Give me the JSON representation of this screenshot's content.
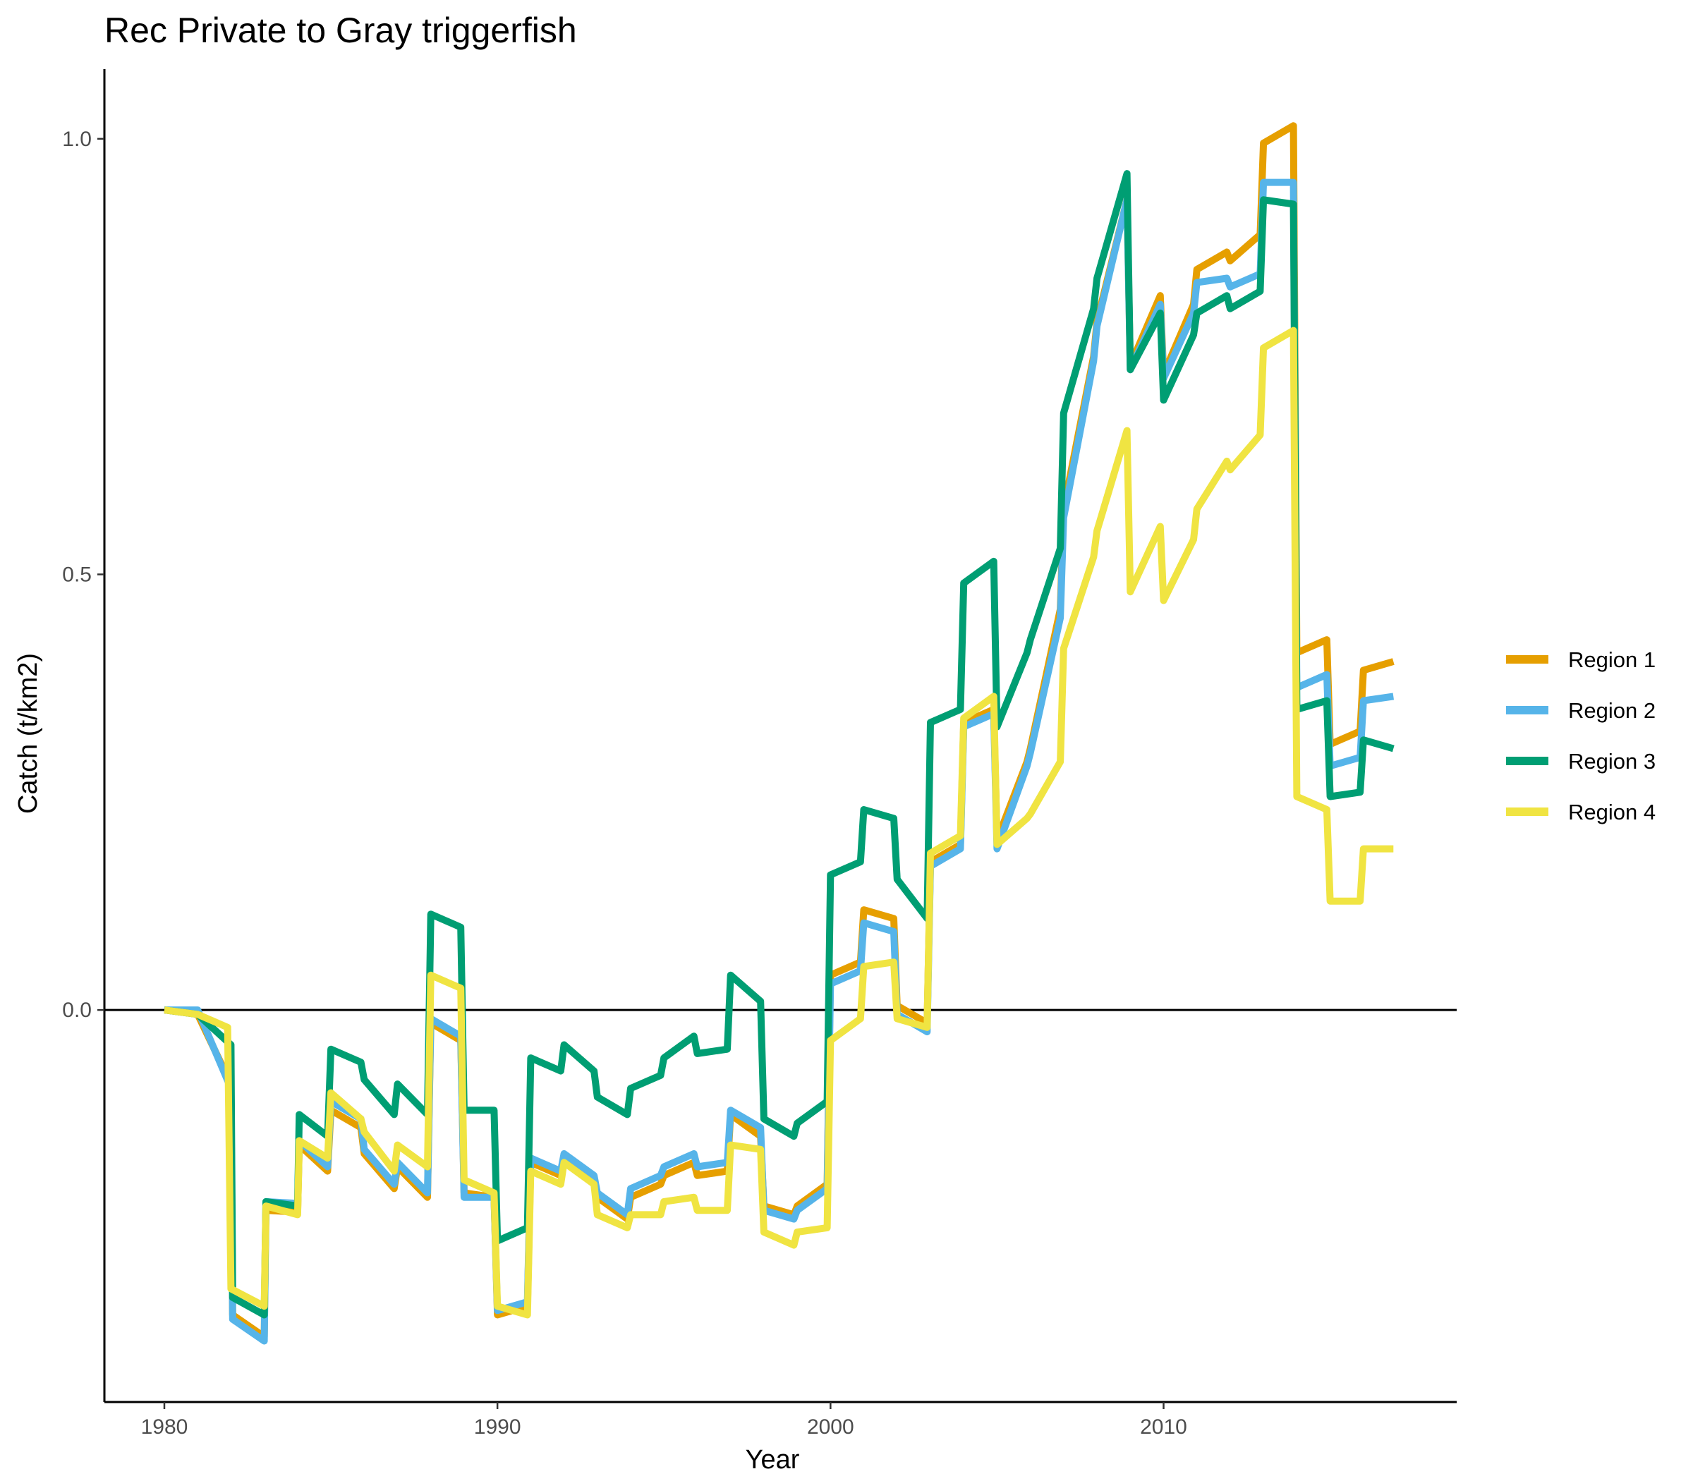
{
  "chart_data": {
    "type": "line",
    "title": "Rec Private to Gray triggerfish",
    "xlabel": "Year",
    "ylabel": "Catch (t/km2)",
    "xlim": [
      1978.2,
      2018.8
    ],
    "ylim": [
      -0.45,
      1.08
    ],
    "x_ticks": [
      1980,
      1990,
      2000,
      2010
    ],
    "x_tick_labels": [
      "1980",
      "1990",
      "2000",
      "2010"
    ],
    "y_ticks": [
      0.0,
      0.5,
      1.0
    ],
    "y_tick_labels": [
      "0.0",
      "0.5",
      "1.0"
    ],
    "reference_line": 0,
    "grid": false,
    "legend_position": "right",
    "series": [
      {
        "name": "Region 1",
        "color": "#E69F00",
        "points": [
          [
            1980,
            0.0
          ],
          [
            1981,
            -0.005
          ],
          [
            1982,
            -0.085
          ],
          [
            1982.05,
            -0.35
          ],
          [
            1983,
            -0.375
          ],
          [
            1983.05,
            -0.23
          ],
          [
            1984,
            -0.232
          ],
          [
            1984.05,
            -0.155
          ],
          [
            1984.9,
            -0.185
          ],
          [
            1985,
            -0.115
          ],
          [
            1985.9,
            -0.135
          ],
          [
            1986,
            -0.165
          ],
          [
            1986.9,
            -0.205
          ],
          [
            1987,
            -0.18
          ],
          [
            1987.9,
            -0.215
          ],
          [
            1988,
            -0.015
          ],
          [
            1988.9,
            -0.035
          ],
          [
            1989,
            -0.21
          ],
          [
            1989.9,
            -0.215
          ],
          [
            1990,
            -0.35
          ],
          [
            1990.9,
            -0.34
          ],
          [
            1991,
            -0.175
          ],
          [
            1991.9,
            -0.19
          ],
          [
            1992,
            -0.17
          ],
          [
            1992.9,
            -0.2
          ],
          [
            1993,
            -0.215
          ],
          [
            1993.9,
            -0.24
          ],
          [
            1994,
            -0.215
          ],
          [
            1994.9,
            -0.2
          ],
          [
            1995,
            -0.19
          ],
          [
            1995.9,
            -0.175
          ],
          [
            1996,
            -0.19
          ],
          [
            1996.9,
            -0.185
          ],
          [
            1997,
            -0.12
          ],
          [
            1997.9,
            -0.145
          ],
          [
            1998,
            -0.225
          ],
          [
            1998.9,
            -0.235
          ],
          [
            1999,
            -0.225
          ],
          [
            1999.9,
            -0.2
          ],
          [
            2000,
            0.04
          ],
          [
            2000.9,
            0.055
          ],
          [
            2001,
            0.115
          ],
          [
            2001.9,
            0.105
          ],
          [
            2002,
            0.005
          ],
          [
            2002.9,
            -0.015
          ],
          [
            2003,
            0.17
          ],
          [
            2003.9,
            0.19
          ],
          [
            2004,
            0.33
          ],
          [
            2004.9,
            0.345
          ],
          [
            2005,
            0.195
          ],
          [
            2005.9,
            0.285
          ],
          [
            2006,
            0.3
          ],
          [
            2006.9,
            0.46
          ],
          [
            2007,
            0.575
          ],
          [
            2007.9,
            0.75
          ],
          [
            2008,
            0.79
          ],
          [
            2008.9,
            0.93
          ],
          [
            2009,
            0.74
          ],
          [
            2009.9,
            0.82
          ],
          [
            2010,
            0.73
          ],
          [
            2010.9,
            0.81
          ],
          [
            2011,
            0.85
          ],
          [
            2011.9,
            0.87
          ],
          [
            2012,
            0.86
          ],
          [
            2012.9,
            0.89
          ],
          [
            2013,
            0.995
          ],
          [
            2013.9,
            1.015
          ],
          [
            2014,
            0.41
          ],
          [
            2014.9,
            0.425
          ],
          [
            2015,
            0.305
          ],
          [
            2015.9,
            0.32
          ],
          [
            2016,
            0.39
          ],
          [
            2016.9,
            0.4
          ]
        ]
      },
      {
        "name": "Region 2",
        "color": "#56B4E9",
        "points": [
          [
            1980,
            0.0
          ],
          [
            1981,
            0.0
          ],
          [
            1982,
            -0.09
          ],
          [
            1982.05,
            -0.355
          ],
          [
            1983,
            -0.38
          ],
          [
            1983.05,
            -0.22
          ],
          [
            1984,
            -0.222
          ],
          [
            1984.05,
            -0.15
          ],
          [
            1984.9,
            -0.18
          ],
          [
            1985,
            -0.105
          ],
          [
            1985.9,
            -0.125
          ],
          [
            1986,
            -0.16
          ],
          [
            1986.9,
            -0.2
          ],
          [
            1987,
            -0.175
          ],
          [
            1987.9,
            -0.21
          ],
          [
            1988,
            -0.01
          ],
          [
            1988.9,
            -0.03
          ],
          [
            1989,
            -0.215
          ],
          [
            1989.9,
            -0.215
          ],
          [
            1990,
            -0.345
          ],
          [
            1990.9,
            -0.335
          ],
          [
            1991,
            -0.17
          ],
          [
            1991.9,
            -0.185
          ],
          [
            1992,
            -0.165
          ],
          [
            1992.9,
            -0.19
          ],
          [
            1993,
            -0.21
          ],
          [
            1993.9,
            -0.235
          ],
          [
            1994,
            -0.205
          ],
          [
            1994.9,
            -0.19
          ],
          [
            1995,
            -0.18
          ],
          [
            1995.9,
            -0.165
          ],
          [
            1996,
            -0.18
          ],
          [
            1996.9,
            -0.175
          ],
          [
            1997,
            -0.115
          ],
          [
            1997.9,
            -0.135
          ],
          [
            1998,
            -0.23
          ],
          [
            1998.9,
            -0.24
          ],
          [
            1999,
            -0.23
          ],
          [
            1999.9,
            -0.205
          ],
          [
            2000,
            0.03
          ],
          [
            2000.9,
            0.045
          ],
          [
            2001,
            0.1
          ],
          [
            2001.9,
            0.09
          ],
          [
            2002,
            -0.005
          ],
          [
            2002.9,
            -0.025
          ],
          [
            2003,
            0.165
          ],
          [
            2003.9,
            0.185
          ],
          [
            2004,
            0.325
          ],
          [
            2004.9,
            0.34
          ],
          [
            2005,
            0.185
          ],
          [
            2005.9,
            0.28
          ],
          [
            2006,
            0.295
          ],
          [
            2006.9,
            0.45
          ],
          [
            2007,
            0.565
          ],
          [
            2007.9,
            0.745
          ],
          [
            2008,
            0.785
          ],
          [
            2008.9,
            0.93
          ],
          [
            2009,
            0.735
          ],
          [
            2009.9,
            0.81
          ],
          [
            2010,
            0.725
          ],
          [
            2010.9,
            0.8
          ],
          [
            2011,
            0.835
          ],
          [
            2011.9,
            0.84
          ],
          [
            2012,
            0.83
          ],
          [
            2012.9,
            0.845
          ],
          [
            2013,
            0.95
          ],
          [
            2013.9,
            0.95
          ],
          [
            2014,
            0.37
          ],
          [
            2014.9,
            0.385
          ],
          [
            2015,
            0.28
          ],
          [
            2015.9,
            0.29
          ],
          [
            2016,
            0.355
          ],
          [
            2016.9,
            0.36
          ]
        ]
      },
      {
        "name": "Region 3",
        "color": "#009E73",
        "points": [
          [
            1980,
            0.0
          ],
          [
            1981,
            -0.005
          ],
          [
            1982,
            -0.04
          ],
          [
            1982.05,
            -0.33
          ],
          [
            1983,
            -0.35
          ],
          [
            1983.05,
            -0.22
          ],
          [
            1984,
            -0.225
          ],
          [
            1984.05,
            -0.12
          ],
          [
            1984.9,
            -0.145
          ],
          [
            1985,
            -0.045
          ],
          [
            1985.9,
            -0.06
          ],
          [
            1986,
            -0.08
          ],
          [
            1986.9,
            -0.12
          ],
          [
            1987,
            -0.085
          ],
          [
            1987.9,
            -0.12
          ],
          [
            1988,
            0.11
          ],
          [
            1988.9,
            0.095
          ],
          [
            1989,
            -0.115
          ],
          [
            1989.9,
            -0.115
          ],
          [
            1990,
            -0.265
          ],
          [
            1990.9,
            -0.25
          ],
          [
            1991,
            -0.055
          ],
          [
            1991.9,
            -0.07
          ],
          [
            1992,
            -0.04
          ],
          [
            1992.9,
            -0.07
          ],
          [
            1993,
            -0.1
          ],
          [
            1993.9,
            -0.12
          ],
          [
            1994,
            -0.09
          ],
          [
            1994.9,
            -0.075
          ],
          [
            1995,
            -0.055
          ],
          [
            1995.9,
            -0.03
          ],
          [
            1996,
            -0.05
          ],
          [
            1996.9,
            -0.045
          ],
          [
            1997,
            0.04
          ],
          [
            1997.9,
            0.01
          ],
          [
            1998,
            -0.125
          ],
          [
            1998.9,
            -0.145
          ],
          [
            1999,
            -0.13
          ],
          [
            1999.9,
            -0.105
          ],
          [
            2000,
            0.155
          ],
          [
            2000.9,
            0.17
          ],
          [
            2001,
            0.23
          ],
          [
            2001.9,
            0.22
          ],
          [
            2002,
            0.15
          ],
          [
            2002.9,
            0.105
          ],
          [
            2003,
            0.33
          ],
          [
            2003.9,
            0.345
          ],
          [
            2004,
            0.49
          ],
          [
            2004.9,
            0.515
          ],
          [
            2005,
            0.325
          ],
          [
            2005.9,
            0.41
          ],
          [
            2006,
            0.425
          ],
          [
            2006.9,
            0.53
          ],
          [
            2007,
            0.685
          ],
          [
            2007.9,
            0.805
          ],
          [
            2008,
            0.84
          ],
          [
            2008.9,
            0.96
          ],
          [
            2009,
            0.735
          ],
          [
            2009.9,
            0.8
          ],
          [
            2010,
            0.7
          ],
          [
            2010.9,
            0.775
          ],
          [
            2011,
            0.8
          ],
          [
            2011.9,
            0.82
          ],
          [
            2012,
            0.805
          ],
          [
            2012.9,
            0.825
          ],
          [
            2013,
            0.93
          ],
          [
            2013.9,
            0.925
          ],
          [
            2014,
            0.345
          ],
          [
            2014.9,
            0.355
          ],
          [
            2015,
            0.245
          ],
          [
            2015.9,
            0.25
          ],
          [
            2016,
            0.31
          ],
          [
            2016.9,
            0.3
          ]
        ]
      },
      {
        "name": "Region 4",
        "color": "#F0E442",
        "points": [
          [
            1980,
            0.0
          ],
          [
            1981,
            -0.005
          ],
          [
            1981.9,
            -0.02
          ],
          [
            1982,
            -0.32
          ],
          [
            1983,
            -0.34
          ],
          [
            1983.05,
            -0.225
          ],
          [
            1984,
            -0.235
          ],
          [
            1984.05,
            -0.15
          ],
          [
            1984.9,
            -0.17
          ],
          [
            1985,
            -0.095
          ],
          [
            1985.9,
            -0.125
          ],
          [
            1986,
            -0.14
          ],
          [
            1986.9,
            -0.185
          ],
          [
            1987,
            -0.155
          ],
          [
            1987.9,
            -0.18
          ],
          [
            1988,
            0.04
          ],
          [
            1988.9,
            0.025
          ],
          [
            1989,
            -0.195
          ],
          [
            1989.9,
            -0.21
          ],
          [
            1990,
            -0.34
          ],
          [
            1990.9,
            -0.35
          ],
          [
            1991,
            -0.185
          ],
          [
            1991.9,
            -0.2
          ],
          [
            1992,
            -0.175
          ],
          [
            1992.9,
            -0.2
          ],
          [
            1993,
            -0.235
          ],
          [
            1993.9,
            -0.25
          ],
          [
            1994,
            -0.235
          ],
          [
            1994.9,
            -0.235
          ],
          [
            1995,
            -0.22
          ],
          [
            1995.9,
            -0.215
          ],
          [
            1996,
            -0.23
          ],
          [
            1996.9,
            -0.23
          ],
          [
            1997,
            -0.155
          ],
          [
            1997.9,
            -0.16
          ],
          [
            1998,
            -0.255
          ],
          [
            1998.9,
            -0.27
          ],
          [
            1999,
            -0.255
          ],
          [
            1999.9,
            -0.25
          ],
          [
            2000,
            -0.035
          ],
          [
            2000.9,
            -0.01
          ],
          [
            2001,
            0.05
          ],
          [
            2001.9,
            0.055
          ],
          [
            2002,
            -0.01
          ],
          [
            2002.9,
            -0.02
          ],
          [
            2003,
            0.18
          ],
          [
            2003.9,
            0.2
          ],
          [
            2004,
            0.335
          ],
          [
            2004.9,
            0.36
          ],
          [
            2005,
            0.19
          ],
          [
            2005.9,
            0.22
          ],
          [
            2006,
            0.225
          ],
          [
            2006.9,
            0.285
          ],
          [
            2007,
            0.415
          ],
          [
            2007.9,
            0.52
          ],
          [
            2008,
            0.55
          ],
          [
            2008.9,
            0.665
          ],
          [
            2009,
            0.48
          ],
          [
            2009.9,
            0.555
          ],
          [
            2010,
            0.47
          ],
          [
            2010.9,
            0.54
          ],
          [
            2011,
            0.575
          ],
          [
            2011.9,
            0.63
          ],
          [
            2012,
            0.62
          ],
          [
            2012.9,
            0.66
          ],
          [
            2013,
            0.76
          ],
          [
            2013.9,
            0.78
          ],
          [
            2014,
            0.245
          ],
          [
            2014.9,
            0.23
          ],
          [
            2015,
            0.125
          ],
          [
            2015.9,
            0.125
          ],
          [
            2016,
            0.185
          ],
          [
            2016.9,
            0.185
          ]
        ]
      }
    ]
  }
}
